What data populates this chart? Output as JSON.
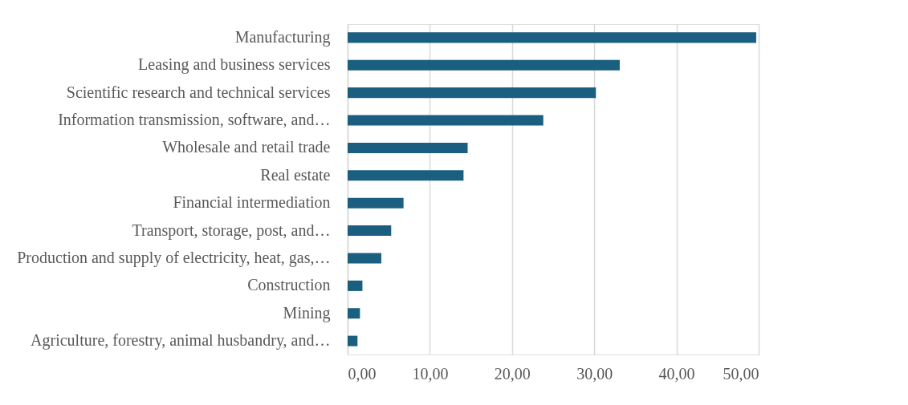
{
  "chart_data": {
    "type": "bar",
    "orientation": "horizontal",
    "categories": [
      "Manufacturing",
      "Leasing and business services",
      "Scientific research and technical services",
      "Information transmission, software, and…",
      "Wholesale and retail trade",
      "Real estate",
      "Financial intermediation",
      "Transport, storage, post, and…",
      "Production and supply of electricity, heat, gas,…",
      "Construction",
      "Mining",
      "Agriculture, forestry, animal husbandry, and…"
    ],
    "series": [
      {
        "color": "#1a5e80",
        "values": [
          49.7,
          33.1,
          30.2,
          23.8,
          14.6,
          14.1,
          6.8,
          5.3,
          4.1,
          1.8,
          1.5,
          1.2
        ]
      }
    ],
    "xlim": [
      0,
      50
    ],
    "xticks": [
      {
        "value": 0,
        "label": "0,00"
      },
      {
        "value": 10,
        "label": "10,00"
      },
      {
        "value": 20,
        "label": "20,00"
      },
      {
        "value": 30,
        "label": "30,00"
      },
      {
        "value": 40,
        "label": "40,00"
      },
      {
        "value": 50,
        "label": "50,00"
      }
    ],
    "grid": "x"
  }
}
